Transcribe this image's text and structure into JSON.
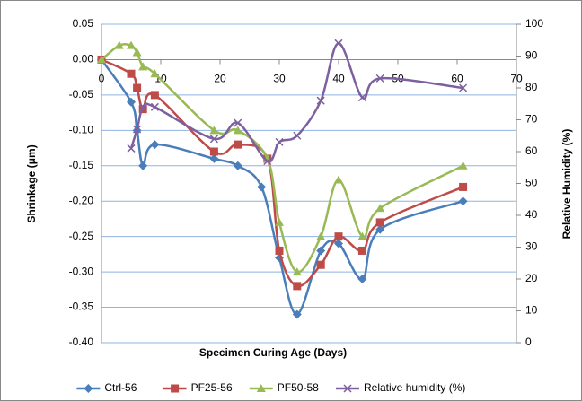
{
  "chart_data": {
    "type": "line",
    "smooth": true,
    "grid": true,
    "xlabel": "Specimen Curing Age (Days)",
    "ylabel": "Shrinkage (μm)",
    "y2label": "Relative Humidity (%)",
    "xlim": [
      0,
      70
    ],
    "xticks": [
      0,
      10,
      20,
      30,
      40,
      50,
      60,
      70
    ],
    "ylim": [
      -0.4,
      0.05
    ],
    "yticks": [
      0.05,
      {
        "value": 0,
        "label": "0.00"
      },
      -0.05,
      {
        "value": -0.1,
        "label": "-0.10"
      },
      -0.15,
      {
        "value": -0.2,
        "label": "-0.20"
      },
      -0.25,
      {
        "value": -0.3,
        "label": "-0.30"
      },
      -0.35,
      {
        "value": -0.4,
        "label": "-0.40"
      }
    ],
    "y2lim": [
      0,
      100
    ],
    "y2ticks": [
      0,
      10,
      20,
      30,
      40,
      50,
      60,
      70,
      80,
      90,
      100
    ],
    "legend": "bottom",
    "series": [
      {
        "name": "Ctrl-56",
        "color": "#4a7ebb",
        "marker": "diamond",
        "x": [
          0,
          5,
          6,
          7,
          9,
          19,
          23,
          27,
          30,
          33,
          37,
          40,
          44,
          47,
          61
        ],
        "values": [
          0,
          -0.06,
          -0.1,
          -0.15,
          -0.12,
          -0.14,
          -0.15,
          -0.18,
          -0.28,
          -0.36,
          -0.27,
          -0.26,
          -0.31,
          -0.24,
          -0.2
        ]
      },
      {
        "name": "PF25-56",
        "color": "#be4b48",
        "marker": "square",
        "x": [
          0,
          5,
          6,
          7,
          9,
          19,
          23,
          28,
          30,
          33,
          37,
          40,
          44,
          47,
          61
        ],
        "values": [
          0,
          -0.02,
          -0.04,
          -0.07,
          -0.05,
          -0.13,
          -0.12,
          -0.14,
          -0.27,
          -0.32,
          -0.29,
          -0.25,
          -0.27,
          -0.23,
          -0.18
        ]
      },
      {
        "name": "PF50-58",
        "color": "#98b954",
        "marker": "triangle",
        "x": [
          0,
          3,
          5,
          6,
          7,
          9,
          19,
          23,
          28,
          30,
          33,
          37,
          40,
          44,
          47,
          61
        ],
        "values": [
          0,
          0.02,
          0.02,
          0.01,
          -0.01,
          -0.02,
          -0.1,
          -0.1,
          -0.14,
          -0.23,
          -0.3,
          -0.25,
          -0.17,
          -0.25,
          -0.21,
          -0.15
        ]
      },
      {
        "name": "Relative humidity (%)",
        "color": "#7d60a0",
        "marker": "x",
        "axis": "y2",
        "x": [
          5,
          6,
          7,
          9,
          19,
          23,
          28,
          30,
          33,
          37,
          40,
          44,
          47,
          61
        ],
        "values": [
          61,
          67,
          74,
          74,
          64,
          69,
          57,
          63,
          65,
          76,
          94,
          77,
          83,
          80
        ]
      }
    ]
  }
}
